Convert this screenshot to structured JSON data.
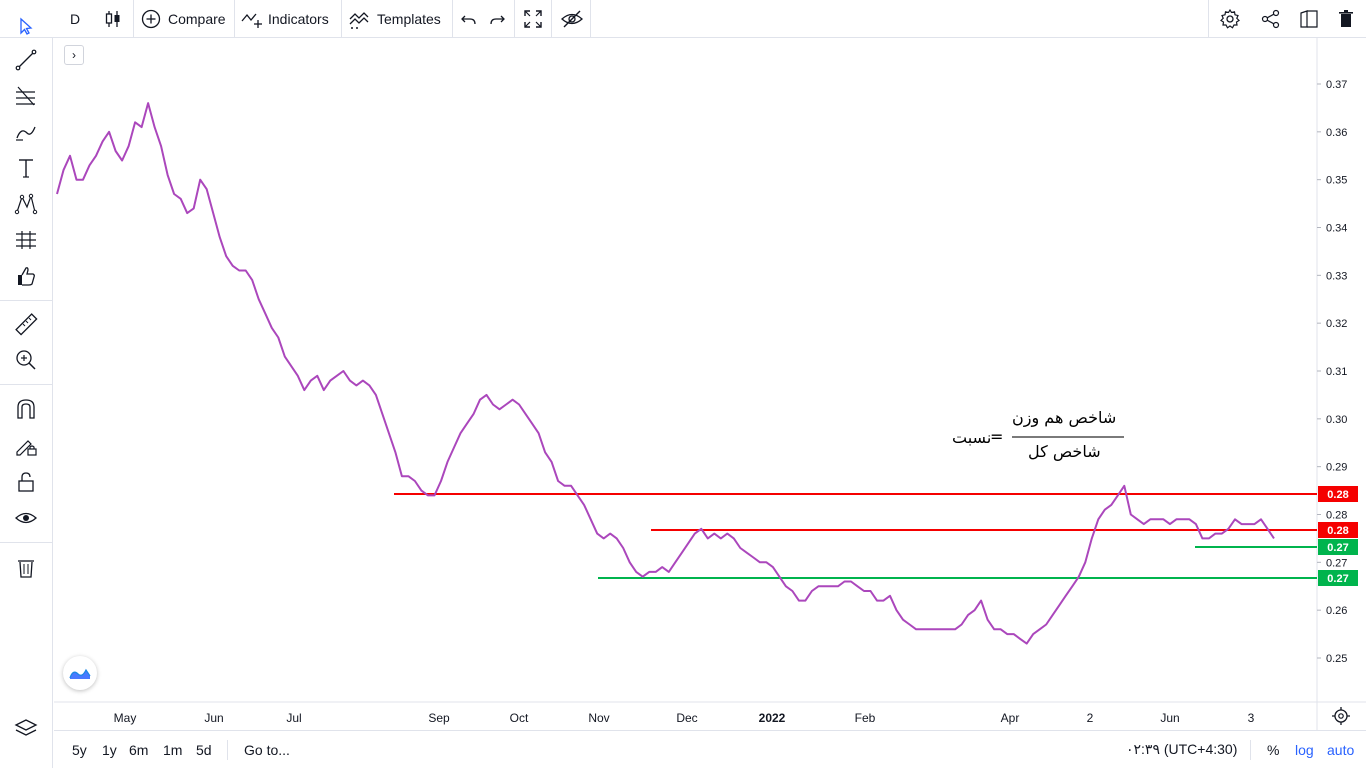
{
  "toolbar": {
    "interval": "D",
    "compare_label": "Compare",
    "indicators_label": "Indicators",
    "templates_label": "Templates"
  },
  "bottom": {
    "ranges": [
      "5y",
      "1y",
      "6m",
      "1m",
      "5d"
    ],
    "goto_label": "Go to...",
    "time": "۰۲:۳۹ (UTC+4:30)",
    "percent": "%",
    "log": "log",
    "auto": "auto"
  },
  "annotation": {
    "ratio": "نسبت",
    "equals": "=",
    "numerator": "شاخص هم وزن",
    "denominator": "شاخص کل"
  },
  "colors": {
    "line": "#ab47bc",
    "resistance": "#f50000",
    "support": "#00b44d",
    "accent": "#2962ff"
  },
  "chart_data": {
    "type": "line",
    "x_ticks": [
      "May",
      "Jun",
      "Jul",
      "Sep",
      "Oct",
      "Nov",
      "Dec",
      "2022",
      "Feb",
      "Apr",
      "2",
      "Jun",
      "3"
    ],
    "y_ticks": [
      "0.37",
      "0.36",
      "0.35",
      "0.34",
      "0.33",
      "0.32",
      "0.31",
      "0.30",
      "0.29",
      "0.28",
      "0.27",
      "0.26",
      "0.25"
    ],
    "ylim": [
      0.245,
      0.375
    ],
    "series": [
      {
        "values": [
          0.347,
          0.352,
          0.355,
          0.35,
          0.35,
          0.353,
          0.355,
          0.358,
          0.36,
          0.356,
          0.354,
          0.357,
          0.362,
          0.361,
          0.366,
          0.361,
          0.357,
          0.351,
          0.347,
          0.346,
          0.343,
          0.344,
          0.35,
          0.348,
          0.343,
          0.338,
          0.334,
          0.332,
          0.331,
          0.331,
          0.329,
          0.325,
          0.322,
          0.319,
          0.317,
          0.313,
          0.311,
          0.309,
          0.306,
          0.308,
          0.309,
          0.306,
          0.308,
          0.309,
          0.31,
          0.308,
          0.307,
          0.308,
          0.307,
          0.305,
          0.301,
          0.297,
          0.293,
          0.288,
          0.288,
          0.287,
          0.285,
          0.284,
          0.284,
          0.287,
          0.291,
          0.294,
          0.297,
          0.299,
          0.301,
          0.304,
          0.305,
          0.303,
          0.302,
          0.303,
          0.304,
          0.303,
          0.301,
          0.299,
          0.297,
          0.293,
          0.291,
          0.287,
          0.286,
          0.286,
          0.284,
          0.282,
          0.279,
          0.276,
          0.275,
          0.276,
          0.275,
          0.273,
          0.27,
          0.268,
          0.267,
          0.268,
          0.268,
          0.269,
          0.268,
          0.27,
          0.272,
          0.274,
          0.276,
          0.277,
          0.275,
          0.276,
          0.275,
          0.276,
          0.275,
          0.273,
          0.272,
          0.271,
          0.27,
          0.27,
          0.269,
          0.267,
          0.265,
          0.264,
          0.262,
          0.262,
          0.264,
          0.265,
          0.265,
          0.265,
          0.265,
          0.266,
          0.266,
          0.265,
          0.264,
          0.264,
          0.262,
          0.262,
          0.263,
          0.26,
          0.258,
          0.257,
          0.256,
          0.256,
          0.256,
          0.256,
          0.256,
          0.256,
          0.256,
          0.257,
          0.259,
          0.26,
          0.262,
          0.258,
          0.256,
          0.256,
          0.255,
          0.255,
          0.254,
          0.253,
          0.255,
          0.256,
          0.257,
          0.259,
          0.261,
          0.263,
          0.265,
          0.267,
          0.27,
          0.275,
          0.279,
          0.281,
          0.282,
          0.284,
          0.286,
          0.28,
          0.279,
          0.278,
          0.279,
          0.279,
          0.279,
          0.278,
          0.279,
          0.279,
          0.279,
          0.278,
          0.275,
          0.275,
          0.276,
          0.276,
          0.277,
          0.279,
          0.278,
          0.278,
          0.278,
          0.279,
          0.277,
          0.275
        ]
      }
    ],
    "lines": [
      {
        "name": "",
        "value": 0.28,
        "label": "0.28",
        "kind": "resistance"
      },
      {
        "name": "",
        "value": 0.28,
        "label": "0.28",
        "kind": "resistance"
      },
      {
        "name": "",
        "value": 0.27,
        "label": "0.27",
        "kind": "support"
      },
      {
        "name": "",
        "value": 0.27,
        "label": "0.27",
        "kind": "support"
      }
    ],
    "grid": false
  }
}
